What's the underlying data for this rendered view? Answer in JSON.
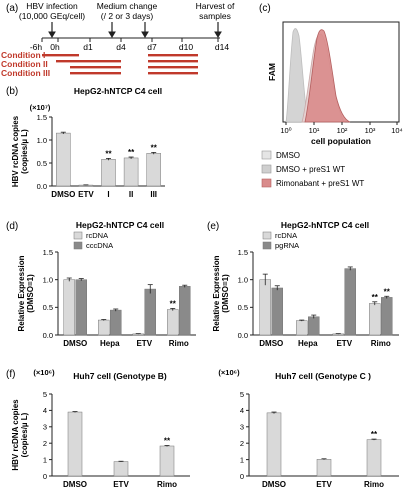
{
  "colors": {
    "light": "#d9d9d9",
    "dark": "#8a8a8a",
    "red": "#c0392b",
    "flow_pink": "#d98b8b",
    "axis": "#222222",
    "flow_gray": "#d4d4d4"
  },
  "panel_a": {
    "label": "(a)",
    "infection_text_1": "HBV infection",
    "infection_text_2": "(10,000 GEq/cell)",
    "medium_text_1": "Medium change",
    "medium_text_2": "(/ 2 or 3 days)",
    "harvest_text_1": "Harvest of",
    "harvest_text_2": "samples",
    "timeline_ticks": [
      "-6h",
      "0h",
      "d1",
      "d4",
      "d7",
      "d10",
      "d14"
    ],
    "conditions": [
      "Condition I",
      "Condition II",
      "Condition III"
    ]
  },
  "panel_c": {
    "label": "(c)",
    "ylabel": "FAM",
    "xlabel": "cell population",
    "xticks": [
      "10⁰",
      "10¹",
      "10²",
      "10³",
      "10⁴"
    ],
    "legend": [
      "DMSO",
      "DMSO + preS1 WT",
      "Rimonabant + preS1 WT"
    ]
  },
  "chart_data": [
    {
      "panel": "(b)",
      "type": "bar",
      "title": "HepG2-hNTCP C4 cell",
      "ylabel_1": "HBV rcDNA copies",
      "ylabel_2": "(copies/µ L)",
      "exponent": "(×10⁷)",
      "categories": [
        "DMSO",
        "ETV",
        "I",
        "II",
        "III"
      ],
      "values": [
        1.15,
        0.02,
        0.58,
        0.61,
        0.71
      ],
      "errors": [
        0.02,
        0.005,
        0.02,
        0.02,
        0.02
      ],
      "sig": [
        "",
        "",
        "**",
        "**",
        "**"
      ],
      "ylim": [
        0,
        1.5
      ],
      "yticks": [
        "0.0",
        "0.5",
        "1.0",
        "1.5"
      ]
    },
    {
      "panel": "(d)",
      "type": "bar",
      "title": "HepG2-hNTCP C4 cell",
      "ylabel_1": "Relative Expression",
      "ylabel_2": "(DMSO=1)",
      "categories": [
        "DMSO",
        "Hepa",
        "ETV",
        "Rimo"
      ],
      "series": [
        {
          "name": "rcDNA",
          "values": [
            1.0,
            0.27,
            0.02,
            0.46
          ],
          "errors": [
            0.03,
            0.01,
            0.005,
            0.02
          ],
          "sig": [
            "",
            "",
            "",
            "**"
          ]
        },
        {
          "name": "cccDNA",
          "values": [
            1.0,
            0.45,
            0.83,
            0.88
          ],
          "errors": [
            0.02,
            0.02,
            0.08,
            0.02
          ],
          "sig": [
            "",
            "",
            "",
            ""
          ]
        }
      ],
      "ylim": [
        0,
        1.5
      ],
      "yticks": [
        "0.0",
        "0.5",
        "1.0",
        "1.5"
      ]
    },
    {
      "panel": "(e)",
      "type": "bar",
      "title": "HepG2-hNTCP C4 cell",
      "ylabel_1": "Relative Expression",
      "ylabel_2": "(DMSO=1)",
      "categories": [
        "DMSO",
        "Hepa",
        "ETV",
        "Rimo"
      ],
      "series": [
        {
          "name": "rcDNA",
          "values": [
            1.0,
            0.26,
            0.02,
            0.57
          ],
          "errors": [
            0.1,
            0.01,
            0.005,
            0.03
          ],
          "sig": [
            "",
            "",
            "",
            "**"
          ]
        },
        {
          "name": "pgRNA",
          "values": [
            0.85,
            0.33,
            1.2,
            0.68
          ],
          "errors": [
            0.04,
            0.03,
            0.03,
            0.02
          ],
          "sig": [
            "",
            "",
            "",
            "**"
          ]
        }
      ],
      "ylim": [
        0,
        1.5
      ],
      "yticks": [
        "0.0",
        "0.5",
        "1.0",
        "1.5"
      ]
    },
    {
      "panel": "(f)",
      "type": "bar",
      "title": "Huh7 cell (Genotype B)",
      "ylabel_1": "HBV rcDNA copies",
      "ylabel_2": "(copies/µ L)",
      "exponent": "(×10⁶)",
      "categories": [
        "DMSO",
        "ETV",
        "Rimo"
      ],
      "values": [
        3.9,
        0.88,
        1.83
      ],
      "errors": [
        0.03,
        0.02,
        0.03
      ],
      "sig": [
        "",
        "",
        "**"
      ],
      "ylim": [
        0,
        5
      ],
      "yticks": [
        "0",
        "1",
        "2",
        "3",
        "4",
        "5"
      ]
    },
    {
      "panel": "",
      "type": "bar",
      "title": "Huh7 cell (Genotype C )",
      "exponent": "(×10⁶)",
      "categories": [
        "DMSO",
        "ETV",
        "Rimo"
      ],
      "values": [
        3.85,
        1.02,
        2.22
      ],
      "errors": [
        0.05,
        0.03,
        0.03
      ],
      "sig": [
        "",
        "",
        "**"
      ],
      "ylim": [
        0,
        5
      ],
      "yticks": [
        "0",
        "1",
        "2",
        "3",
        "4",
        "5"
      ]
    }
  ]
}
